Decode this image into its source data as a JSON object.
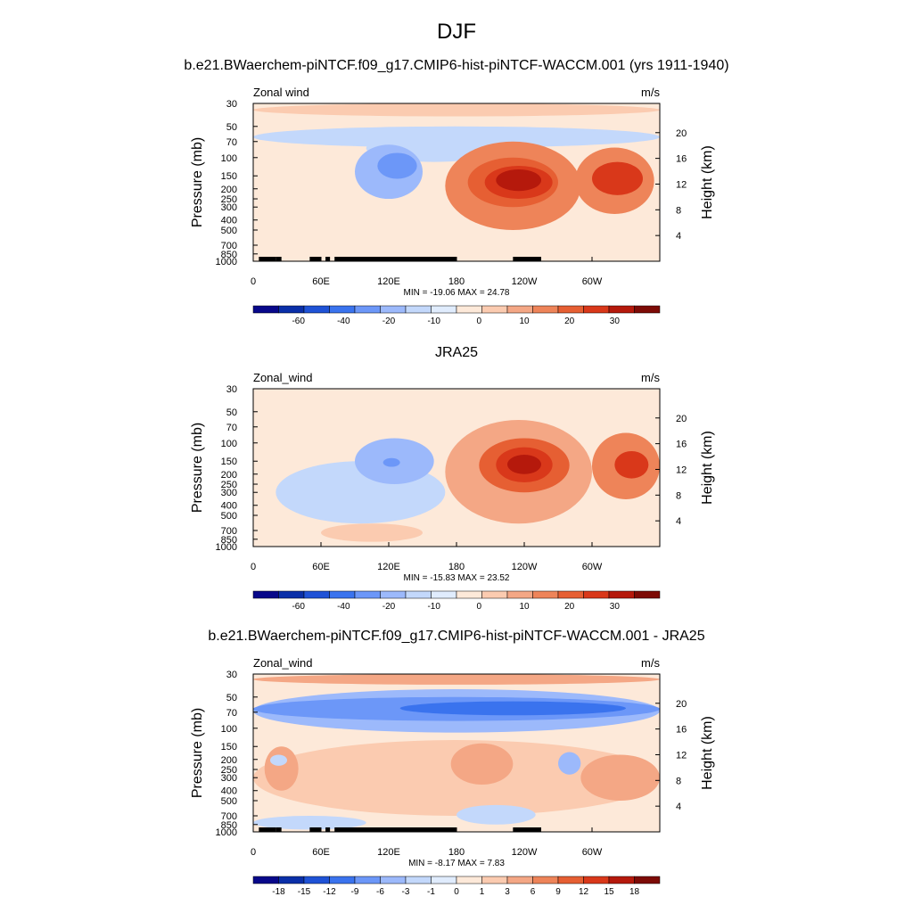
{
  "page_title": "DJF",
  "chart_data": [
    {
      "type": "contour",
      "title": "b.e21.BWaerchem-piNTCF.f09_g17.CMIP6-hist-piNTCF-WACCM.001 (yrs 1911-1940)",
      "left_label": "Zonal wind",
      "right_label": "m/s",
      "ylabel": "Pressure (mb)",
      "y2label": "Height (km)",
      "pressure_ticks": [
        "30",
        "50",
        "70",
        "100",
        "150",
        "200",
        "250",
        "300",
        "400",
        "500",
        "700",
        "850",
        "1000"
      ],
      "height_ticks": [
        "20",
        "16",
        "12",
        "8",
        "4"
      ],
      "x_ticks": [
        "0",
        "60E",
        "120E",
        "180",
        "120W",
        "60W"
      ],
      "stats": "MIN = -19.06  MAX =  24.78",
      "colorbar_labels": [
        "-60",
        "-40",
        "-20",
        "-10",
        "0",
        "10",
        "20",
        "30"
      ],
      "colorbar_colors": [
        "#08088a",
        "#0a2fa8",
        "#1f52d6",
        "#3a73ee",
        "#6c97f8",
        "#9cb9fb",
        "#c3d8fb",
        "#e0ecfd",
        "#fde9d9",
        "#fbcbb0",
        "#f4a785",
        "#ee8459",
        "#e65f33",
        "#d9381a",
        "#b5190c",
        "#7d0b06"
      ],
      "fields": [
        {
          "level": "neg1",
          "lon": [
            100,
            220
          ],
          "p": [
            60,
            110
          ]
        },
        {
          "level": "neg1",
          "lon": [
            0,
            360
          ],
          "p": [
            50,
            80
          ]
        },
        {
          "level": "neg2",
          "lon": [
            90,
            150
          ],
          "p": [
            75,
            250
          ]
        },
        {
          "level": "neg3",
          "lon": [
            110,
            145
          ],
          "p": [
            90,
            160
          ]
        },
        {
          "level": "pos4",
          "lon": [
            170,
            290
          ],
          "p": [
            70,
            500
          ]
        },
        {
          "level": "pos5",
          "lon": [
            190,
            270
          ],
          "p": [
            100,
            300
          ]
        },
        {
          "level": "pos6",
          "lon": [
            205,
            265
          ],
          "p": [
            120,
            250
          ]
        },
        {
          "level": "pos7",
          "lon": [
            215,
            255
          ],
          "p": [
            130,
            210
          ]
        },
        {
          "level": "pos4",
          "lon": [
            285,
            355
          ],
          "p": [
            80,
            350
          ]
        },
        {
          "level": "pos6",
          "lon": [
            300,
            345
          ],
          "p": [
            110,
            230
          ]
        },
        {
          "level": "pos2",
          "lon": [
            0,
            360
          ],
          "p": [
            30,
            40
          ]
        }
      ]
    },
    {
      "type": "contour",
      "title": "JRA25",
      "left_label": "Zonal_wind",
      "right_label": "m/s",
      "ylabel": "Pressure (mb)",
      "y2label": "Height (km)",
      "pressure_ticks": [
        "30",
        "50",
        "70",
        "100",
        "150",
        "200",
        "250",
        "300",
        "400",
        "500",
        "700",
        "850",
        "1000"
      ],
      "height_ticks": [
        "20",
        "16",
        "12",
        "8",
        "4"
      ],
      "x_ticks": [
        "0",
        "60E",
        "120E",
        "180",
        "120W",
        "60W"
      ],
      "stats": "MIN = -15.83  MAX =  23.52",
      "colorbar_labels": [
        "-60",
        "-40",
        "-20",
        "-10",
        "0",
        "10",
        "20",
        "30"
      ],
      "colorbar_colors": [
        "#08088a",
        "#0a2fa8",
        "#1f52d6",
        "#3a73ee",
        "#6c97f8",
        "#9cb9fb",
        "#c3d8fb",
        "#e0ecfd",
        "#fde9d9",
        "#fbcbb0",
        "#f4a785",
        "#ee8459",
        "#e65f33",
        "#d9381a",
        "#b5190c",
        "#7d0b06"
      ],
      "fields": [
        {
          "level": "neg1",
          "lon": [
            20,
            170
          ],
          "p": [
            150,
            600
          ]
        },
        {
          "level": "neg2",
          "lon": [
            90,
            160
          ],
          "p": [
            90,
            250
          ]
        },
        {
          "level": "neg3",
          "lon": [
            115,
            130
          ],
          "p": [
            140,
            170
          ]
        },
        {
          "level": "pos3",
          "lon": [
            170,
            300
          ],
          "p": [
            60,
            600
          ]
        },
        {
          "level": "pos5",
          "lon": [
            200,
            280
          ],
          "p": [
            90,
            300
          ]
        },
        {
          "level": "pos6",
          "lon": [
            215,
            265
          ],
          "p": [
            110,
            240
          ]
        },
        {
          "level": "pos7",
          "lon": [
            225,
            255
          ],
          "p": [
            130,
            200
          ]
        },
        {
          "level": "pos4",
          "lon": [
            300,
            360
          ],
          "p": [
            80,
            350
          ]
        },
        {
          "level": "pos6",
          "lon": [
            320,
            350
          ],
          "p": [
            120,
            220
          ]
        },
        {
          "level": "pos2",
          "lon": [
            60,
            150
          ],
          "p": [
            600,
            900
          ]
        }
      ]
    },
    {
      "type": "contour",
      "title": "b.e21.BWaerchem-piNTCF.f09_g17.CMIP6-hist-piNTCF-WACCM.001 - JRA25",
      "left_label": "Zonal_wind",
      "right_label": "m/s",
      "ylabel": "Pressure (mb)",
      "y2label": "Height (km)",
      "pressure_ticks": [
        "30",
        "50",
        "70",
        "100",
        "150",
        "200",
        "250",
        "300",
        "400",
        "500",
        "700",
        "850",
        "1000"
      ],
      "height_ticks": [
        "20",
        "16",
        "12",
        "8",
        "4"
      ],
      "x_ticks": [
        "0",
        "60E",
        "120E",
        "180",
        "120W",
        "60W"
      ],
      "stats": "MIN = -8.17  MAX =  7.83",
      "colorbar_labels": [
        "-18",
        "-15",
        "-12",
        "-9",
        "-6",
        "-3",
        "-1",
        "0",
        "1",
        "3",
        "6",
        "9",
        "12",
        "15",
        "18"
      ],
      "colorbar_colors": [
        "#08088a",
        "#0a2fa8",
        "#1f52d6",
        "#3a73ee",
        "#6c97f8",
        "#9cb9fb",
        "#c3d8fb",
        "#e0ecfd",
        "#fde9d9",
        "#fbcbb0",
        "#f4a785",
        "#ee8459",
        "#e65f33",
        "#d9381a",
        "#b5190c",
        "#7d0b06"
      ],
      "fields": [
        {
          "level": "neg2",
          "lon": [
            0,
            360
          ],
          "p": [
            42,
            110
          ]
        },
        {
          "level": "neg3",
          "lon": [
            0,
            360
          ],
          "p": [
            50,
            85
          ]
        },
        {
          "level": "neg4",
          "lon": [
            130,
            330
          ],
          "p": [
            55,
            75
          ]
        },
        {
          "level": "pos3",
          "lon": [
            0,
            360
          ],
          "p": [
            30,
            38
          ]
        },
        {
          "level": "pos2",
          "lon": [
            0,
            360
          ],
          "p": [
            130,
            700
          ]
        },
        {
          "level": "pos3",
          "lon": [
            175,
            230
          ],
          "p": [
            140,
            350
          ]
        },
        {
          "level": "pos3",
          "lon": [
            10,
            40
          ],
          "p": [
            150,
            400
          ]
        },
        {
          "level": "pos3",
          "lon": [
            290,
            360
          ],
          "p": [
            180,
            500
          ]
        },
        {
          "level": "neg1",
          "lon": [
            15,
            30
          ],
          "p": [
            180,
            230
          ]
        },
        {
          "level": "neg2",
          "lon": [
            270,
            290
          ],
          "p": [
            170,
            280
          ]
        },
        {
          "level": "neg1",
          "lon": [
            0,
            100
          ],
          "p": [
            700,
            950
          ]
        },
        {
          "level": "neg1",
          "lon": [
            180,
            250
          ],
          "p": [
            550,
            850
          ]
        }
      ]
    }
  ]
}
